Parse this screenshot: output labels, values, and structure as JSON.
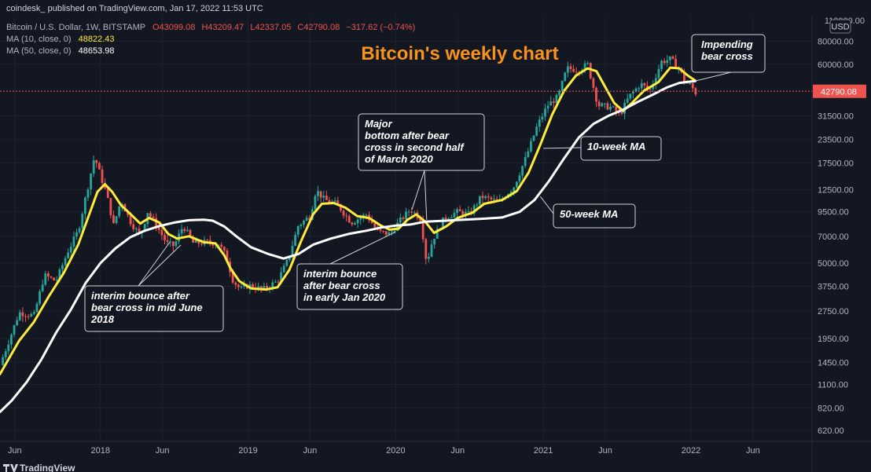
{
  "header": {
    "publisher": "coindesk_ published on TradingView.com, Jan 17, 2022 11:53 UTC",
    "symbol": "Bitcoin / U.S. Dollar, 1W, BITSTAMP",
    "ohlc": {
      "o": "O43099.08",
      "h": "H43209.47",
      "l": "L42337.05",
      "c": "C42790.08",
      "change": "−317.62 (−0.74%)"
    },
    "ma10": {
      "label": "MA (10, close, 0)",
      "value": "48822.43"
    },
    "ma50": {
      "label": "MA (50, close, 0)",
      "value": "48653.98"
    }
  },
  "currency": "USD",
  "last_price_label": "42790.08",
  "top_price_label": "110000.00",
  "footer_brand": "TradingView",
  "colors": {
    "up": "#26a69a",
    "down": "#ef5350",
    "ma10": "#ffeb3b",
    "ma50": "#ffffff",
    "title": "#f7931a",
    "background": "#131722"
  },
  "chart_data": {
    "type": "candlestick",
    "title": "Bitcoin's weekly chart",
    "y_scale": "log",
    "ylim": [
      540,
      110000
    ],
    "xlim": [
      2017.32,
      2022.82
    ],
    "y_ticks": [
      80000,
      60000,
      42790.08,
      31500,
      23500,
      17500,
      12500,
      9500,
      7000,
      5000,
      3750,
      2750,
      1950,
      1450,
      1100,
      820,
      620
    ],
    "y_tick_labels": [
      "80000.00",
      "60000.00",
      "42790.08",
      "31500.00",
      "23500.00",
      "17500.00",
      "12500.00",
      "9500.00",
      "7000.00",
      "5000.00",
      "3750.00",
      "2750.00",
      "1950.00",
      "1450.00",
      "1100.00",
      "820.00",
      "620.00"
    ],
    "x_ticks": [
      {
        "label": "Jun",
        "x": 2017.42
      },
      {
        "label": "2018",
        "x": 2018.0
      },
      {
        "label": "Jun",
        "x": 2018.42
      },
      {
        "label": "2019",
        "x": 2019.0
      },
      {
        "label": "Jun",
        "x": 2019.42
      },
      {
        "label": "2020",
        "x": 2020.0
      },
      {
        "label": "Jun",
        "x": 2020.42
      },
      {
        "label": "2021",
        "x": 2021.0
      },
      {
        "label": "Jun",
        "x": 2021.42
      },
      {
        "label": "2022",
        "x": 2022.0
      },
      {
        "label": "Jun",
        "x": 2022.42
      }
    ],
    "price_anchors": [
      [
        2017.32,
        1400
      ],
      [
        2017.45,
        2700
      ],
      [
        2017.55,
        2600
      ],
      [
        2017.62,
        4300
      ],
      [
        2017.7,
        4000
      ],
      [
        2017.78,
        5800
      ],
      [
        2017.85,
        7500
      ],
      [
        2017.92,
        13500
      ],
      [
        2017.96,
        19000
      ],
      [
        2018.0,
        15000
      ],
      [
        2018.04,
        12000
      ],
      [
        2018.09,
        8000
      ],
      [
        2018.14,
        11000
      ],
      [
        2018.2,
        8500
      ],
      [
        2018.27,
        7000
      ],
      [
        2018.32,
        9500
      ],
      [
        2018.38,
        8000
      ],
      [
        2018.45,
        6400
      ],
      [
        2018.5,
        6200
      ],
      [
        2018.56,
        8000
      ],
      [
        2018.63,
        6400
      ],
      [
        2018.72,
        6500
      ],
      [
        2018.8,
        6400
      ],
      [
        2018.85,
        5500
      ],
      [
        2018.9,
        4000
      ],
      [
        2018.95,
        3600
      ],
      [
        2019.0,
        3800
      ],
      [
        2019.1,
        3600
      ],
      [
        2019.2,
        4000
      ],
      [
        2019.27,
        5200
      ],
      [
        2019.34,
        8000
      ],
      [
        2019.42,
        9000
      ],
      [
        2019.46,
        12500
      ],
      [
        2019.52,
        11000
      ],
      [
        2019.6,
        10500
      ],
      [
        2019.7,
        8300
      ],
      [
        2019.8,
        9200
      ],
      [
        2019.88,
        7400
      ],
      [
        2019.96,
        7200
      ],
      [
        2020.03,
        8500
      ],
      [
        2020.1,
        9800
      ],
      [
        2020.17,
        8700
      ],
      [
        2020.21,
        5000
      ],
      [
        2020.25,
        6700
      ],
      [
        2020.33,
        8800
      ],
      [
        2020.42,
        9500
      ],
      [
        2020.5,
        9200
      ],
      [
        2020.58,
        11500
      ],
      [
        2020.7,
        10700
      ],
      [
        2020.8,
        13000
      ],
      [
        2020.88,
        18500
      ],
      [
        2020.96,
        28000
      ],
      [
        2021.03,
        36000
      ],
      [
        2021.1,
        40000
      ],
      [
        2021.16,
        57000
      ],
      [
        2021.24,
        56000
      ],
      [
        2021.3,
        60000
      ],
      [
        2021.37,
        36000
      ],
      [
        2021.46,
        35000
      ],
      [
        2021.52,
        32000
      ],
      [
        2021.58,
        40000
      ],
      [
        2021.66,
        47000
      ],
      [
        2021.72,
        43000
      ],
      [
        2021.8,
        62000
      ],
      [
        2021.86,
        64000
      ],
      [
        2021.92,
        57000
      ],
      [
        2021.96,
        48000
      ],
      [
        2022.0,
        46000
      ],
      [
        2022.03,
        42000
      ],
      [
        2022.045,
        42790
      ]
    ],
    "series": [
      {
        "name": "MA (10, close, 0)",
        "label": "10-week MA",
        "color": "#ffeb3b",
        "points": [
          [
            2017.32,
            1250
          ],
          [
            2017.45,
            1900
          ],
          [
            2017.55,
            2400
          ],
          [
            2017.65,
            3300
          ],
          [
            2017.75,
            4400
          ],
          [
            2017.85,
            6300
          ],
          [
            2017.92,
            9000
          ],
          [
            2017.98,
            12200
          ],
          [
            2018.03,
            13400
          ],
          [
            2018.08,
            12200
          ],
          [
            2018.14,
            10300
          ],
          [
            2018.2,
            9300
          ],
          [
            2018.27,
            8200
          ],
          [
            2018.33,
            8800
          ],
          [
            2018.4,
            8300
          ],
          [
            2018.46,
            7200
          ],
          [
            2018.52,
            6800
          ],
          [
            2018.6,
            7000
          ],
          [
            2018.7,
            6500
          ],
          [
            2018.78,
            6400
          ],
          [
            2018.84,
            5500
          ],
          [
            2018.88,
            4700
          ],
          [
            2018.94,
            4000
          ],
          [
            2019.02,
            3650
          ],
          [
            2019.12,
            3600
          ],
          [
            2019.2,
            3700
          ],
          [
            2019.28,
            4600
          ],
          [
            2019.36,
            6600
          ],
          [
            2019.44,
            9200
          ],
          [
            2019.5,
            10500
          ],
          [
            2019.58,
            10600
          ],
          [
            2019.66,
            10000
          ],
          [
            2019.74,
            9000
          ],
          [
            2019.82,
            8800
          ],
          [
            2019.9,
            8000
          ],
          [
            2019.96,
            7600
          ],
          [
            2020.02,
            7700
          ],
          [
            2020.08,
            8600
          ],
          [
            2020.14,
            9200
          ],
          [
            2020.2,
            8400
          ],
          [
            2020.26,
            7300
          ],
          [
            2020.34,
            7900
          ],
          [
            2020.42,
            8800
          ],
          [
            2020.52,
            9400
          ],
          [
            2020.6,
            10500
          ],
          [
            2020.72,
            11000
          ],
          [
            2020.82,
            12300
          ],
          [
            2020.9,
            15500
          ],
          [
            2020.98,
            22000
          ],
          [
            2021.06,
            32000
          ],
          [
            2021.14,
            43000
          ],
          [
            2021.22,
            52000
          ],
          [
            2021.3,
            57000
          ],
          [
            2021.36,
            55000
          ],
          [
            2021.42,
            45000
          ],
          [
            2021.48,
            37000
          ],
          [
            2021.54,
            33500
          ],
          [
            2021.6,
            37000
          ],
          [
            2021.68,
            43000
          ],
          [
            2021.78,
            48000
          ],
          [
            2021.86,
            57500
          ],
          [
            2021.92,
            57000
          ],
          [
            2021.98,
            52000
          ],
          [
            2022.03,
            48822
          ]
        ]
      },
      {
        "name": "MA (50, close, 0)",
        "label": "50-week MA",
        "color": "#ffffff",
        "points": [
          [
            2017.32,
            780
          ],
          [
            2017.4,
            900
          ],
          [
            2017.5,
            1130
          ],
          [
            2017.6,
            1500
          ],
          [
            2017.7,
            2100
          ],
          [
            2017.8,
            2800
          ],
          [
            2017.9,
            3900
          ],
          [
            2018.0,
            5000
          ],
          [
            2018.1,
            6000
          ],
          [
            2018.2,
            6900
          ],
          [
            2018.3,
            7500
          ],
          [
            2018.4,
            7950
          ],
          [
            2018.5,
            8300
          ],
          [
            2018.6,
            8550
          ],
          [
            2018.7,
            8600
          ],
          [
            2018.76,
            8500
          ],
          [
            2018.84,
            7900
          ],
          [
            2018.92,
            7000
          ],
          [
            2019.02,
            6100
          ],
          [
            2019.14,
            5600
          ],
          [
            2019.24,
            5300
          ],
          [
            2019.34,
            5600
          ],
          [
            2019.44,
            6300
          ],
          [
            2019.56,
            6800
          ],
          [
            2019.68,
            7200
          ],
          [
            2019.8,
            7500
          ],
          [
            2019.9,
            7800
          ],
          [
            2020.0,
            8000
          ],
          [
            2020.1,
            8100
          ],
          [
            2020.2,
            8400
          ],
          [
            2020.34,
            8500
          ],
          [
            2020.46,
            8600
          ],
          [
            2020.58,
            8700
          ],
          [
            2020.72,
            8850
          ],
          [
            2020.84,
            9500
          ],
          [
            2020.94,
            11000
          ],
          [
            2021.04,
            14000
          ],
          [
            2021.14,
            18500
          ],
          [
            2021.24,
            24000
          ],
          [
            2021.34,
            28500
          ],
          [
            2021.44,
            31500
          ],
          [
            2021.54,
            34000
          ],
          [
            2021.64,
            37500
          ],
          [
            2021.74,
            41000
          ],
          [
            2021.84,
            45000
          ],
          [
            2021.92,
            47500
          ],
          [
            2022.0,
            48400
          ],
          [
            2022.03,
            48654
          ]
        ]
      }
    ],
    "annotations": [
      {
        "text": [
          "Impending",
          "bear cross"
        ],
        "target": [
          2022.03,
          48700
        ]
      },
      {
        "text": [
          "10-week MA"
        ],
        "target": [
          2021.0,
          21000
        ]
      },
      {
        "text": [
          "50-week MA"
        ],
        "target": [
          2020.98,
          11500
        ]
      },
      {
        "text": [
          "Major",
          "bottom after bear",
          "cross in second half",
          "of March 2020"
        ],
        "target": [
          2020.21,
          8600
        ]
      },
      {
        "text": [
          "interim bounce",
          "after bear cross",
          "in early Jan 2020"
        ],
        "target": [
          2020.0,
          7400
        ]
      },
      {
        "text": [
          "interim bounce after",
          "bear cross in mid June",
          "2018"
        ],
        "target": [
          2018.47,
          6500
        ]
      }
    ]
  }
}
